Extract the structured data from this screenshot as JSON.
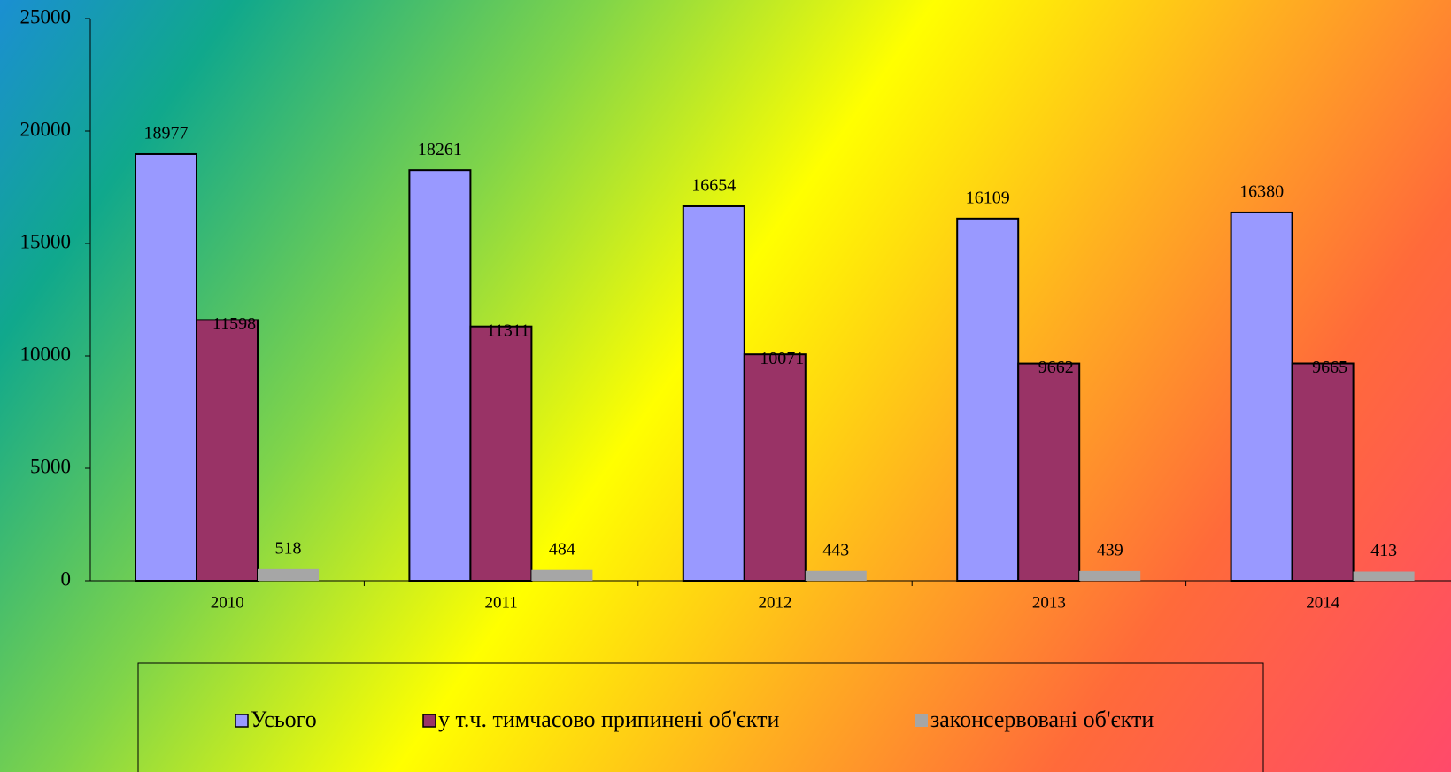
{
  "chart_data": {
    "type": "bar",
    "categories": [
      "2010",
      "2011",
      "2012",
      "2013",
      "2014"
    ],
    "series": [
      {
        "name": "Усього",
        "color": "#9999ff",
        "values": [
          18977,
          18261,
          16654,
          16109,
          16380
        ]
      },
      {
        "name": "у т.ч. тимчасово припинені  об'єкти",
        "color": "#993366",
        "values": [
          11598,
          11311,
          10071,
          9662,
          9665
        ]
      },
      {
        "name": "законсервовані об'єкти",
        "color": "#a6a6a6",
        "values": [
          518,
          484,
          443,
          439,
          413
        ]
      }
    ],
    "ylim": [
      0,
      25000
    ],
    "yticks": [
      0,
      5000,
      10000,
      15000,
      20000,
      25000
    ],
    "legend": "bottom"
  }
}
